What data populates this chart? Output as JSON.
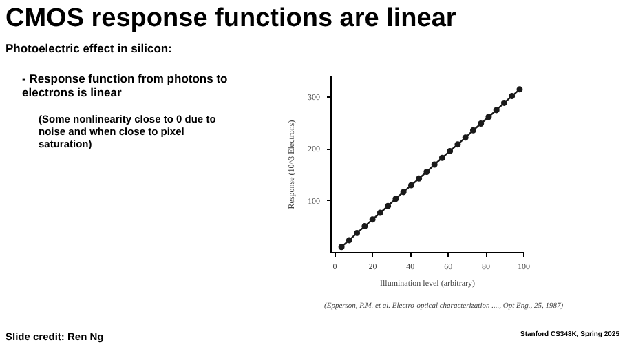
{
  "chart_data": {
    "type": "line",
    "title": "CMOS response functions are linear",
    "xlabel": "Illumination level (arbitrary)",
    "ylabel": "Response (10^3 Electrons)",
    "x": [
      3.5,
      7.6,
      11.7,
      15.8,
      19.9,
      24.0,
      28.1,
      32.2,
      36.3,
      40.4,
      44.5,
      48.6,
      52.7,
      56.8,
      60.9,
      65.0,
      69.1,
      73.2,
      77.3,
      81.4,
      85.5,
      89.6,
      93.7,
      97.8
    ],
    "series": [
      {
        "color": "#1a1a1a",
        "values": [
          11,
          24,
          38,
          51,
          64,
          77,
          90,
          104,
          117,
          130,
          143,
          156,
          170,
          183,
          196,
          209,
          222,
          236,
          249,
          262,
          275,
          289,
          302,
          315
        ]
      }
    ],
    "xlim": [
      -2,
      100
    ],
    "ylim": [
      0,
      340
    ],
    "xticks": [
      0,
      20,
      40,
      60,
      80,
      100
    ],
    "yticks": [
      100,
      200,
      300
    ],
    "grid": false,
    "marker": "circle",
    "line_style": "solid",
    "annotations": [
      "Photoelectric effect in silicon:",
      "-  Response function from photons to electrons is linear",
      "(Some nonlinearity close to 0 due to noise and when close to pixel saturation)",
      "(Epperson, P.M. et al. Electro-optical characterization ...., Opt Eng., 25, 1987)",
      "Slide credit: Ren Ng",
      "Stanford CS348K, Spring 2025"
    ]
  }
}
